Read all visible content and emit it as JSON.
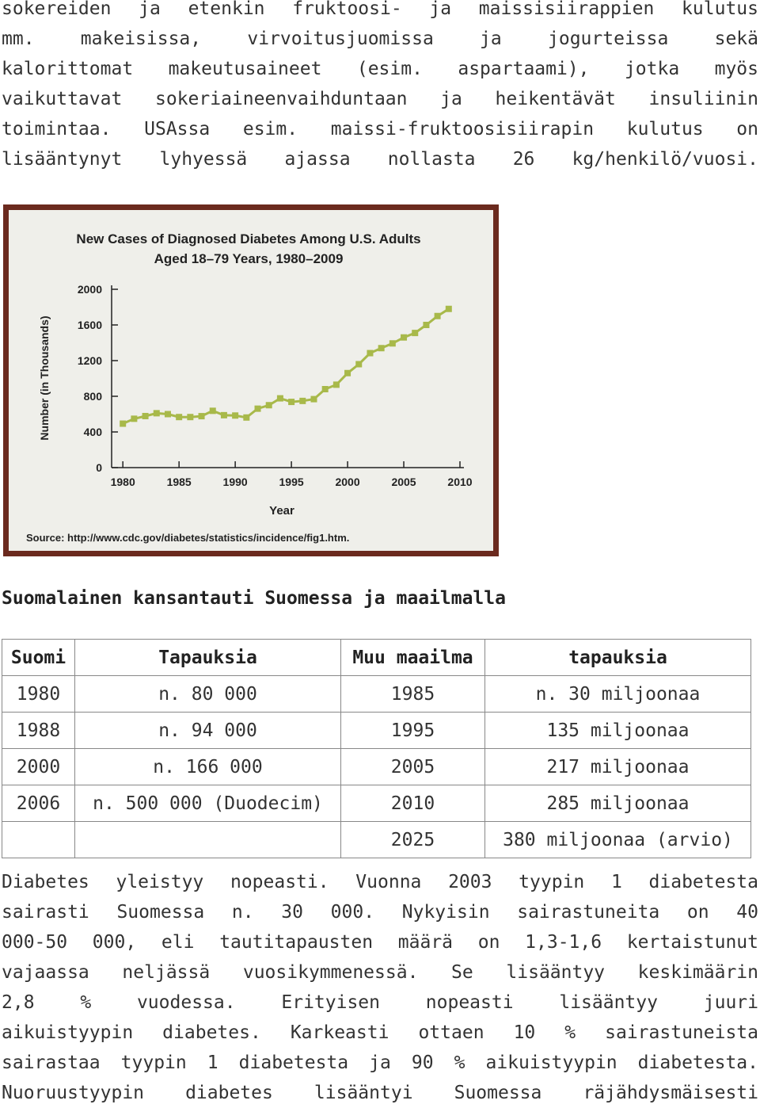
{
  "intro_lines": [
    "sokereiden ja etenkin fruktoosi- ja maissisiirappien kulutus",
    "mm. makeisissa, virvoitusjuomissa ja jogurteissa sekä",
    "kalorittomat makeutusaineet (esim. aspartaami), jotka myös",
    "vaikuttavat sokeriaineenvaihduntaan ja heikentävät insuliinin",
    "toimintaa. USAssa esim. maissi-fruktoosisiirapin kulutus on",
    "lisääntynyt lyhyessä ajassa nollasta 26 kg/henkilö/vuosi."
  ],
  "chart_data": {
    "type": "line",
    "title_line1": "New Cases of Diagnosed Diabetes Among U.S. Adults",
    "title_line2": "Aged 18–79 Years, 1980–2009",
    "xlabel": "Year",
    "ylabel": "Number (in Thousands)",
    "source": "Source: http://www.cdc.gov/diabetes/statistics/incidence/fig1.htm.",
    "x_ticks": [
      "1980",
      "1985",
      "1990",
      "1995",
      "2000",
      "2005",
      "2010"
    ],
    "y_ticks": [
      "0",
      "400",
      "800",
      "1200",
      "1600",
      "2000"
    ],
    "xlim": [
      1979,
      2010
    ],
    "ylim": [
      0,
      2000
    ],
    "series_color": "#a8b94a",
    "x": [
      1980,
      1981,
      1982,
      1983,
      1984,
      1985,
      1986,
      1987,
      1988,
      1989,
      1990,
      1991,
      1992,
      1993,
      1994,
      1995,
      1996,
      1997,
      1998,
      1999,
      2000,
      2001,
      2002,
      2003,
      2004,
      2005,
      2006,
      2007,
      2008,
      2009
    ],
    "values": [
      493,
      548,
      578,
      610,
      600,
      567,
      567,
      577,
      637,
      588,
      584,
      562,
      661,
      700,
      777,
      737,
      748,
      768,
      880,
      930,
      1060,
      1160,
      1284,
      1340,
      1393,
      1460,
      1510,
      1600,
      1700,
      1780
    ]
  },
  "section_heading": "Suomalainen kansantauti Suomessa ja maailmalla",
  "table": {
    "headers": [
      "Suomi",
      "Tapauksia",
      "Muu maailma",
      "tapauksia"
    ],
    "rows": [
      [
        "1980",
        "n. 80 000",
        "1985",
        "n. 30 miljoonaa"
      ],
      [
        "1988",
        "n. 94 000",
        "1995",
        "135 miljoonaa"
      ],
      [
        "2000",
        "n. 166 000",
        "2005",
        "217 miljoonaa"
      ],
      [
        "2006",
        "n. 500 000 (Duodecim)",
        "2010",
        "285 miljoonaa"
      ],
      [
        "",
        "",
        "2025",
        "380 miljoonaa (arvio)"
      ]
    ]
  },
  "outro_lines": [
    "Diabetes yleistyy nopeasti. Vuonna 2003 tyypin 1 diabetesta",
    "sairasti Suomessa n. 30 000. Nykyisin sairastuneita on 40",
    "000-50 000, eli tautitapausten määrä on 1,3-1,6 kertaistunut",
    "vajaassa neljässä vuosikymmenessä. Se lisääntyy keskimäärin",
    "2,8 % vuodessa. Erityisen nopeasti lisääntyy juuri",
    "aikuistyypin diabetes. Karkeasti ottaen 10 % sairastuneista",
    "sairastaa tyypin 1 diabetesta ja 90 % aikuistyypin diabetesta.",
    "Nuoruustyypin diabetes lisääntyi Suomessa räjähdysmäisesti"
  ]
}
